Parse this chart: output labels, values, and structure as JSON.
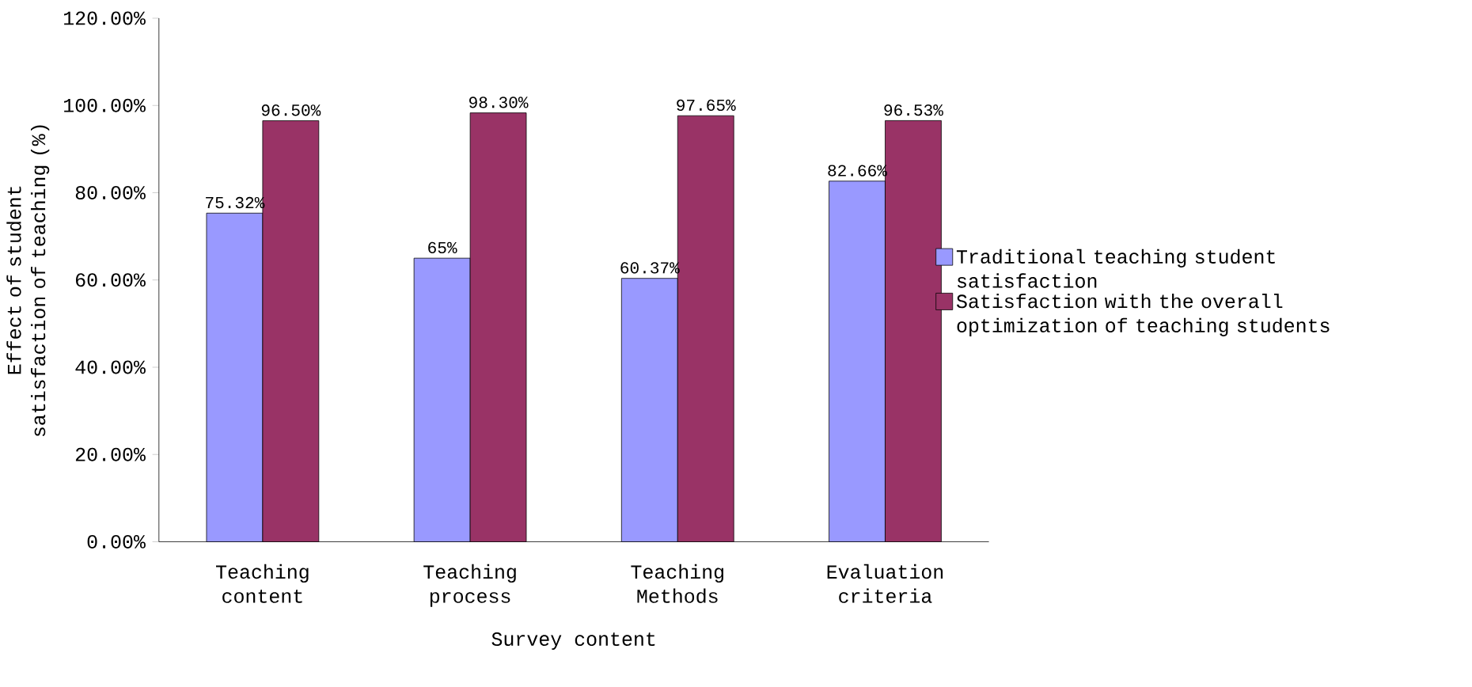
{
  "chart_data": {
    "type": "bar",
    "ylabel": "Effect of student satisfaction of teaching (%)",
    "xlabel": "Survey content",
    "categories": [
      "Teaching content",
      "Teaching process",
      "Teaching Methods",
      "Evaluation criteria"
    ],
    "series": [
      {
        "name": "Traditional teaching student satisfaction",
        "color": "#9999ff",
        "values": [
          75.32,
          65,
          60.37,
          82.66
        ],
        "value_labels": [
          "75.32%",
          "65%",
          "60.37%",
          "82.66%"
        ]
      },
      {
        "name": "Satisfaction with the overall optimization of teaching students",
        "color": "#993366",
        "values": [
          96.5,
          98.3,
          97.65,
          96.53
        ],
        "value_labels": [
          "96.50%",
          "98.30%",
          "97.65%",
          "96.53%"
        ]
      }
    ],
    "ylim": [
      0,
      120
    ],
    "yticks": [
      {
        "value": 0,
        "label": "0.00%"
      },
      {
        "value": 20,
        "label": "20.00%"
      },
      {
        "value": 40,
        "label": "40.00%"
      },
      {
        "value": 60,
        "label": "60.00%"
      },
      {
        "value": 80,
        "label": "80.00%"
      },
      {
        "value": 100,
        "label": "100.00%"
      },
      {
        "value": 120,
        "label": "120.00%"
      }
    ],
    "legend": "right",
    "grid": false
  }
}
